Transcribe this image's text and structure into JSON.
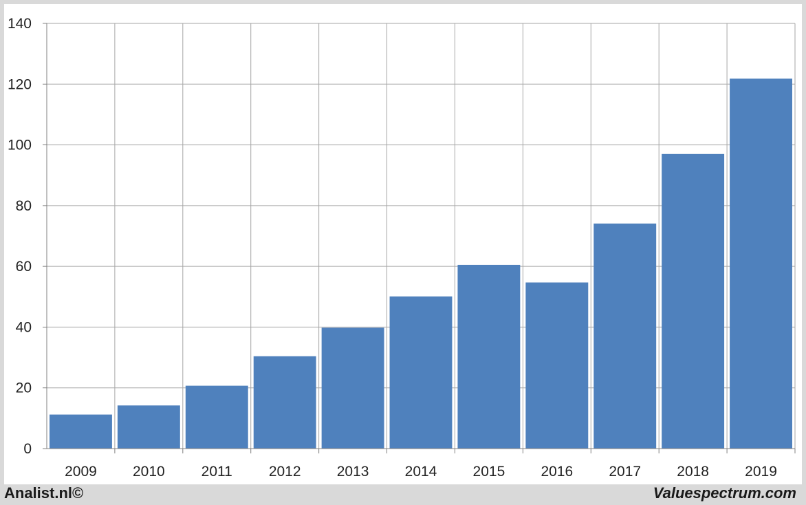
{
  "chart_data": {
    "type": "bar",
    "title": "",
    "xlabel": "",
    "ylabel": "",
    "categories": [
      "2009",
      "2010",
      "2011",
      "2012",
      "2013",
      "2014",
      "2015",
      "2016",
      "2017",
      "2018",
      "2019"
    ],
    "values": [
      11.2,
      14.2,
      20.7,
      30.4,
      39.8,
      50.1,
      60.5,
      54.7,
      74.1,
      97.0,
      121.8
    ],
    "ylim": [
      0,
      140
    ],
    "yticks": [
      0,
      20,
      40,
      60,
      80,
      100,
      120,
      140
    ],
    "grid": true,
    "bar_color": "#4f81bd",
    "grid_color": "#a6a6a6"
  },
  "footer": {
    "left": "Analist.nl©",
    "right": "Valuespectrum.com"
  }
}
